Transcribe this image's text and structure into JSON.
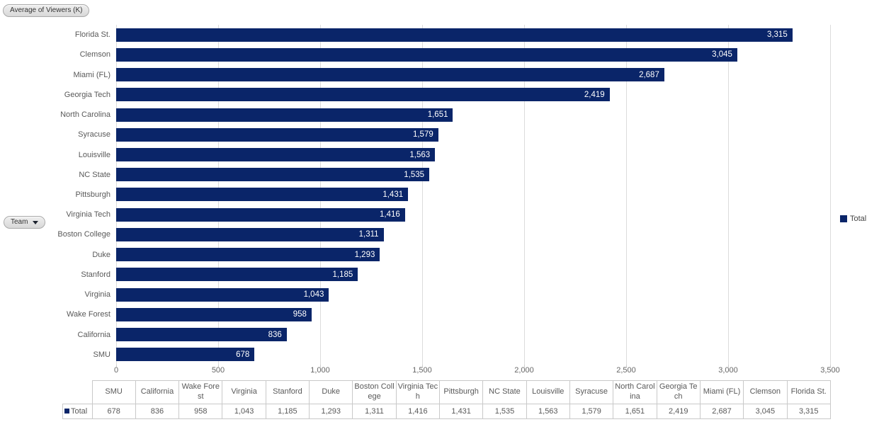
{
  "fields": {
    "value_button_label": "Average of Viewers (K)",
    "category_button_label": "Team"
  },
  "legend": {
    "label": "Total"
  },
  "colors": {
    "bar": "#0a2569",
    "gridline": "#dcdcdc",
    "axis_text": "#666666",
    "category_text": "#595959",
    "bar_value_text": "#ffffff",
    "table_border": "#c9c9c9"
  },
  "chart_data": {
    "type": "bar",
    "orientation": "horizontal",
    "title": "Average of Viewers (K)",
    "xlabel": "",
    "ylabel": "Team",
    "xlim": [
      0,
      3500
    ],
    "grid": true,
    "legend_position": "right",
    "series": [
      {
        "name": "Total"
      }
    ],
    "x_ticks": [
      {
        "value": 0,
        "label": "0"
      },
      {
        "value": 500,
        "label": "500"
      },
      {
        "value": 1000,
        "label": "1,000"
      },
      {
        "value": 1500,
        "label": "1,500"
      },
      {
        "value": 2000,
        "label": "2,000"
      },
      {
        "value": 2500,
        "label": "2,500"
      },
      {
        "value": 3000,
        "label": "3,000"
      },
      {
        "value": 3500,
        "label": "3,500"
      }
    ],
    "bars": [
      {
        "team": "Florida St.",
        "value": 3315,
        "label": "3,315"
      },
      {
        "team": "Clemson",
        "value": 3045,
        "label": "3,045"
      },
      {
        "team": "Miami (FL)",
        "value": 2687,
        "label": "2,687"
      },
      {
        "team": "Georgia Tech",
        "value": 2419,
        "label": "2,419"
      },
      {
        "team": "North Carolina",
        "value": 1651,
        "label": "1,651"
      },
      {
        "team": "Syracuse",
        "value": 1579,
        "label": "1,579"
      },
      {
        "team": "Louisville",
        "value": 1563,
        "label": "1,563"
      },
      {
        "team": "NC State",
        "value": 1535,
        "label": "1,535"
      },
      {
        "team": "Pittsburgh",
        "value": 1431,
        "label": "1,431"
      },
      {
        "team": "Virginia Tech",
        "value": 1416,
        "label": "1,416"
      },
      {
        "team": "Boston College",
        "value": 1311,
        "label": "1,311"
      },
      {
        "team": "Duke",
        "value": 1293,
        "label": "1,293"
      },
      {
        "team": "Stanford",
        "value": 1185,
        "label": "1,185"
      },
      {
        "team": "Virginia",
        "value": 1043,
        "label": "1,043"
      },
      {
        "team": "Wake Forest",
        "value": 958,
        "label": "958"
      },
      {
        "team": "California",
        "value": 836,
        "label": "836"
      },
      {
        "team": "SMU",
        "value": 678,
        "label": "678"
      }
    ]
  },
  "table": {
    "legend_label": "Total",
    "columns": [
      {
        "team": "SMU",
        "value_label": "678"
      },
      {
        "team": "California",
        "value_label": "836"
      },
      {
        "team": "Wake Forest",
        "value_label": "958"
      },
      {
        "team": "Virginia",
        "value_label": "1,043"
      },
      {
        "team": "Stanford",
        "value_label": "1,185"
      },
      {
        "team": "Duke",
        "value_label": "1,293"
      },
      {
        "team": "Boston College",
        "value_label": "1,311"
      },
      {
        "team": "Virginia Tech",
        "value_label": "1,416"
      },
      {
        "team": "Pittsburgh",
        "value_label": "1,431"
      },
      {
        "team": "NC State",
        "value_label": "1,535"
      },
      {
        "team": "Louisville",
        "value_label": "1,563"
      },
      {
        "team": "Syracuse",
        "value_label": "1,579"
      },
      {
        "team": "North Carolina",
        "value_label": "1,651"
      },
      {
        "team": "Georgia Tech",
        "value_label": "2,419"
      },
      {
        "team": "Miami (FL)",
        "value_label": "2,687"
      },
      {
        "team": "Clemson",
        "value_label": "3,045"
      },
      {
        "team": "Florida St.",
        "value_label": "3,315"
      }
    ]
  }
}
